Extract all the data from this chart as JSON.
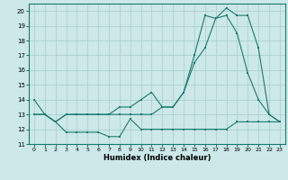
{
  "title": "",
  "xlabel": "Humidex (Indice chaleur)",
  "xlim": [
    -0.5,
    23.5
  ],
  "ylim": [
    11,
    20.5
  ],
  "yticks": [
    11,
    12,
    13,
    14,
    15,
    16,
    17,
    18,
    19,
    20
  ],
  "xticks": [
    0,
    1,
    2,
    3,
    4,
    5,
    6,
    7,
    8,
    9,
    10,
    11,
    12,
    13,
    14,
    15,
    16,
    17,
    18,
    19,
    20,
    21,
    22,
    23
  ],
  "bg_color": "#cce8e8",
  "line_color": "#1a7a6e",
  "grid_color": "#a8cccc",
  "series1_x": [
    0,
    1,
    2,
    3,
    4,
    5,
    6,
    7,
    8,
    9,
    10,
    11,
    12,
    13,
    14,
    15,
    16,
    17,
    18,
    19,
    20,
    21,
    22,
    23
  ],
  "series1_y": [
    14.0,
    13.0,
    12.5,
    11.8,
    11.8,
    11.8,
    11.8,
    11.5,
    11.5,
    12.7,
    12.0,
    12.0,
    12.0,
    12.0,
    12.0,
    12.0,
    12.0,
    12.0,
    12.0,
    12.5,
    12.5,
    12.5,
    12.5,
    12.5
  ],
  "series2_x": [
    0,
    1,
    2,
    3,
    4,
    5,
    6,
    7,
    8,
    9,
    10,
    11,
    12,
    13,
    14,
    15,
    16,
    17,
    18,
    19,
    20,
    21,
    22,
    23
  ],
  "series2_y": [
    13.0,
    13.0,
    12.5,
    13.0,
    13.0,
    13.0,
    13.0,
    13.0,
    13.5,
    13.5,
    14.0,
    14.5,
    13.5,
    13.5,
    14.5,
    17.0,
    19.7,
    19.5,
    19.7,
    18.5,
    15.8,
    14.0,
    13.0,
    12.5
  ],
  "series3_x": [
    0,
    1,
    2,
    3,
    4,
    5,
    6,
    7,
    8,
    9,
    10,
    11,
    12,
    13,
    14,
    15,
    16,
    17,
    18,
    19,
    20,
    21,
    22,
    23
  ],
  "series3_y": [
    13.0,
    13.0,
    12.5,
    13.0,
    13.0,
    13.0,
    13.0,
    13.0,
    13.0,
    13.0,
    13.0,
    13.0,
    13.5,
    13.5,
    14.5,
    16.5,
    17.5,
    19.5,
    20.2,
    19.7,
    19.7,
    17.5,
    13.0,
    12.5
  ]
}
